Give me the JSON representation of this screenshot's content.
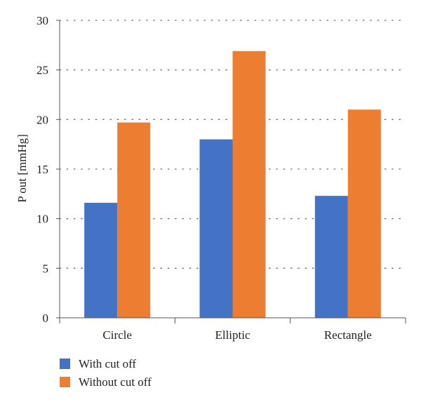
{
  "chart_data": {
    "type": "bar",
    "categories": [
      "Circle",
      "Elliptic",
      "Rectangle"
    ],
    "series": [
      {
        "name": "With cut off",
        "values": [
          11.6,
          18.0,
          12.3
        ],
        "color": "#4472c4"
      },
      {
        "name": "Without cut off",
        "values": [
          19.7,
          26.9,
          21.0
        ],
        "color": "#ed7d31"
      }
    ],
    "title": "",
    "xlabel": "",
    "ylabel": "P out [mmHg]",
    "ylim": [
      0,
      30
    ],
    "yticks": [
      0,
      5,
      10,
      15,
      20,
      25,
      30
    ],
    "grid": "dotted horizontal",
    "legend": "bottom-left"
  }
}
